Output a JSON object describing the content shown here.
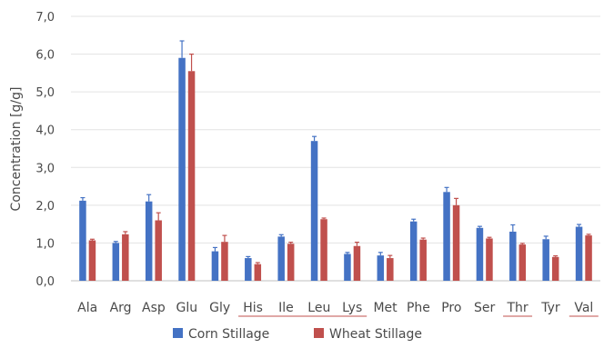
{
  "chart_data": {
    "type": "bar",
    "title": "",
    "xlabel": "",
    "ylabel": "Concentration [g/g]",
    "ylim": [
      0,
      7
    ],
    "yticks": [
      "0,0",
      "1,0",
      "2,0",
      "3,0",
      "4,0",
      "5,0",
      "6,0",
      "7,0"
    ],
    "grid": true,
    "legend_position": "bottom",
    "categories": [
      "Ala",
      "Arg",
      "Asp",
      "Glu",
      "Gly",
      "His",
      "Ile",
      "Leu",
      "Lys",
      "Met",
      "Phe",
      "Pro",
      "Ser",
      "Thr",
      "Tyr",
      "Val"
    ],
    "underlined_categories": [
      "His",
      "Ile",
      "Leu",
      "Lys",
      "Thr",
      "Val"
    ],
    "series": [
      {
        "name": "Corn Stillage",
        "color": "#4472c4",
        "values": [
          2.12,
          1.0,
          2.1,
          5.9,
          0.78,
          0.6,
          1.17,
          3.7,
          0.71,
          0.67,
          1.57,
          2.35,
          1.4,
          1.3,
          1.1,
          1.43
        ],
        "errors": [
          0.08,
          0.04,
          0.18,
          0.45,
          0.1,
          0.04,
          0.05,
          0.12,
          0.04,
          0.08,
          0.06,
          0.12,
          0.04,
          0.18,
          0.08,
          0.06
        ]
      },
      {
        "name": "Wheat Stillage",
        "color": "#c0504d",
        "values": [
          1.07,
          1.23,
          1.6,
          5.55,
          1.03,
          0.44,
          0.98,
          1.63,
          0.92,
          0.6,
          1.09,
          2.0,
          1.12,
          0.96,
          0.63,
          1.2
        ],
        "errors": [
          0.03,
          0.07,
          0.2,
          0.45,
          0.17,
          0.04,
          0.04,
          0.03,
          0.1,
          0.07,
          0.04,
          0.18,
          0.03,
          0.03,
          0.03,
          0.03
        ]
      }
    ]
  }
}
